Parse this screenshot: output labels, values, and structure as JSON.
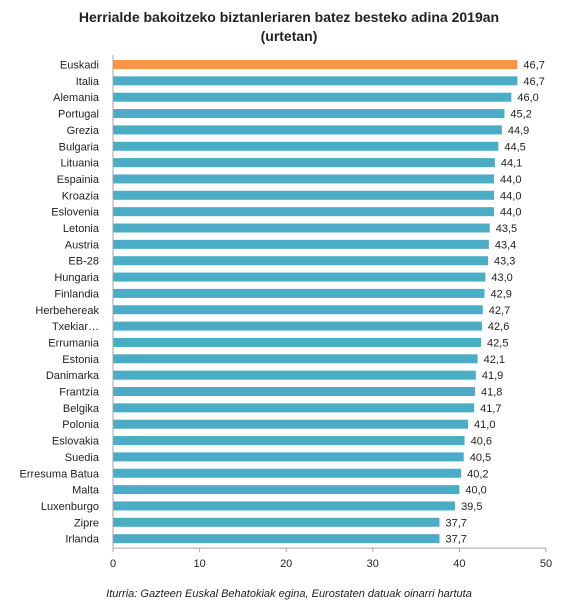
{
  "chart_data": {
    "type": "bar",
    "orientation": "horizontal",
    "title_lines": [
      "Herrialde bakoitzeko biztanleriaren batez besteko adina 2019an",
      "(urtetan)"
    ],
    "categories": [
      "Euskadi",
      "Italia",
      "Alemania",
      "Portugal",
      "Grezia",
      "Bulgaria",
      "Lituania",
      "Espainia",
      "Kroazia",
      "Eslovenia",
      "Letonia",
      "Austria",
      "EB-28",
      "Hungaria",
      "Finlandia",
      "Herbehereak",
      "Txekiar…",
      "Errumania",
      "Estonia",
      "Danimarka",
      "Frantzia",
      "Belgika",
      "Polonia",
      "Eslovakia",
      "Suedia",
      "Erresuma Batua",
      "Malta",
      "Luxenburgo",
      "Zipre",
      "Irlanda"
    ],
    "values": [
      46.7,
      46.7,
      46.0,
      45.2,
      44.9,
      44.5,
      44.1,
      44.0,
      44.0,
      44.0,
      43.5,
      43.4,
      43.3,
      43.0,
      42.9,
      42.7,
      42.6,
      42.5,
      42.1,
      41.9,
      41.8,
      41.7,
      41.0,
      40.6,
      40.5,
      40.2,
      40.0,
      39.5,
      37.7,
      37.7
    ],
    "value_labels": [
      "46,7",
      "46,7",
      "46,0",
      "45,2",
      "44,9",
      "44,5",
      "44,1",
      "44,0",
      "44,0",
      "44,0",
      "43,5",
      "43,4",
      "43,3",
      "43,0",
      "42,9",
      "42,7",
      "42,6",
      "42,5",
      "42,1",
      "41,9",
      "41,8",
      "41,7",
      "41,0",
      "40,6",
      "40,5",
      "40,2",
      "40,0",
      "39,5",
      "37,7",
      "37,7"
    ],
    "xlim": [
      0,
      50
    ],
    "xticks": [
      0,
      10,
      20,
      30,
      40,
      50
    ],
    "grid": false,
    "legend": "none",
    "highlight_category": "Euskadi",
    "colors": {
      "bar": "#4bacc6",
      "highlight": "#f79646",
      "axis": "#a6a6a6",
      "text": "#222222"
    }
  },
  "source_note": "Iturria: Gazteen Euskal Behatokiak egina, Eurostaten datuak oinarri hartuta"
}
